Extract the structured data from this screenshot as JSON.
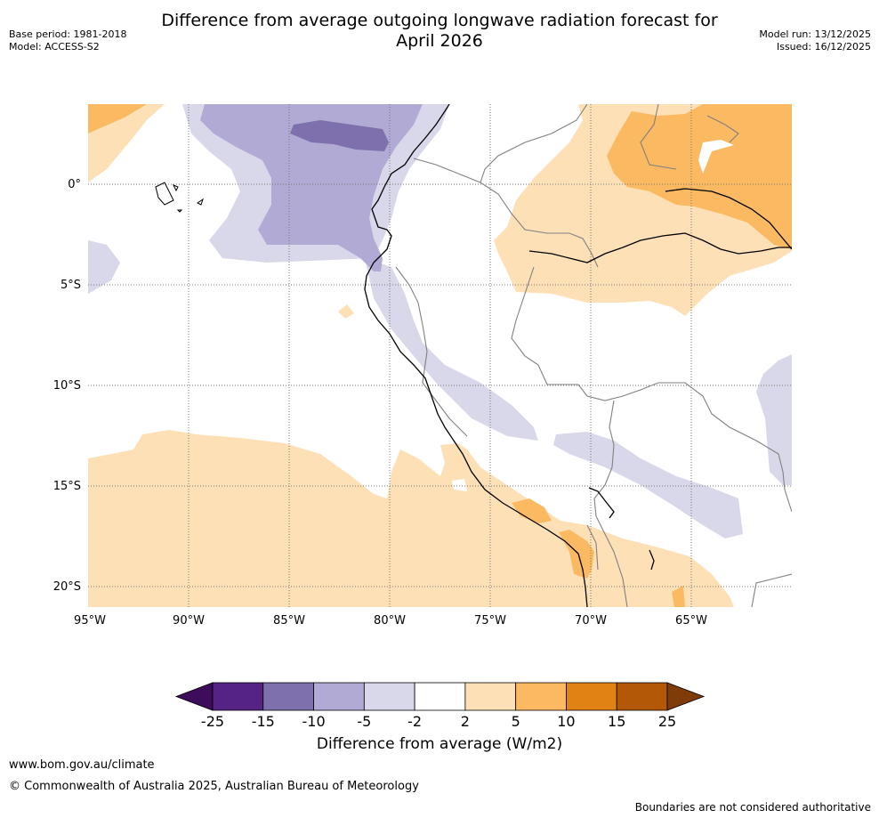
{
  "header": {
    "title_line1": "Difference from average outgoing longwave radiation forecast for",
    "title_line2": "April 2026",
    "base_period": "Base period: 1981-2018",
    "model": "Model: ACCESS-S2",
    "model_run": "Model run: 13/12/2025",
    "issued": "Issued: 16/12/2025"
  },
  "map": {
    "lon_labels": [
      "95°W",
      "90°W",
      "85°W",
      "80°W",
      "75°W",
      "70°W",
      "65°W"
    ],
    "lat_labels": [
      "0°",
      "5°S",
      "10°S",
      "15°S",
      "20°S"
    ],
    "gridlines": true,
    "colors": {
      "light_purple": "#d8d8ea",
      "mid_purple": "#b0aad4",
      "dark_purple": "#7d70ac",
      "light_orange": "#fde0b6",
      "mid_orange": "#fbb962",
      "coast": "#000000",
      "border": "#808080"
    }
  },
  "colorbar": {
    "title": "Difference from average (W/m2)",
    "ticks": [
      "-25",
      "-15",
      "-10",
      "-5",
      "-2",
      "2",
      "5",
      "10",
      "15",
      "25"
    ],
    "colors": [
      "#3d0d5b",
      "#542383",
      "#7d70ac",
      "#b0aad4",
      "#d8d8ea",
      "#ffffff",
      "#fde0b6",
      "#fbb962",
      "#e08314",
      "#b35806",
      "#7f3b08"
    ]
  },
  "footer": {
    "url": "www.bom.gov.au/climate",
    "copyright": "© Commonwealth of Australia 2025, Australian Bureau of Meteorology",
    "note": "Boundaries are not considered authoritative"
  }
}
